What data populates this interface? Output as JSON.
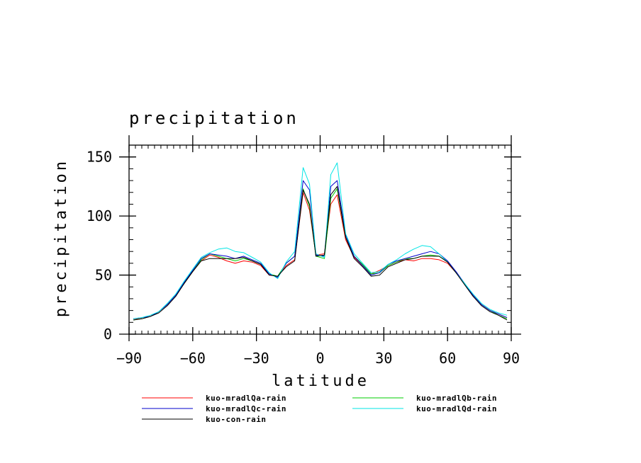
{
  "chart_data": {
    "type": "line",
    "title": "precipitation",
    "xlabel": "latitude",
    "ylabel": "precipitation",
    "xlim": [
      -90,
      90
    ],
    "ylim": [
      0,
      160
    ],
    "xticks": [
      -90,
      -60,
      -30,
      0,
      30,
      60,
      90
    ],
    "xtick_labels": [
      "−90",
      "−60",
      "−30",
      "0",
      "30",
      "60",
      "90"
    ],
    "yticks": [
      0,
      50,
      100,
      150
    ],
    "ytick_labels": [
      "0",
      "50",
      "100",
      "150"
    ],
    "x": [
      -88,
      -84,
      -80,
      -76,
      -72,
      -68,
      -64,
      -60,
      -56,
      -52,
      -48,
      -44,
      -40,
      -36,
      -32,
      -28,
      -24,
      -20,
      -16,
      -12,
      -8,
      -5,
      -2,
      2,
      5,
      8,
      12,
      16,
      20,
      24,
      28,
      32,
      36,
      40,
      44,
      48,
      52,
      56,
      60,
      64,
      68,
      72,
      76,
      80,
      84,
      88
    ],
    "series": [
      {
        "name": "kuo-mradlQa-rain",
        "color": "#ff0000",
        "values": [
          13,
          13,
          15,
          19,
          25,
          33,
          43,
          53,
          62,
          67,
          65,
          62,
          60,
          62,
          61,
          58,
          50,
          49,
          58,
          63,
          120,
          105,
          67,
          68,
          110,
          118,
          80,
          65,
          58,
          51,
          54,
          58,
          61,
          63,
          62,
          64,
          64,
          63,
          60,
          52,
          43,
          33,
          25,
          20,
          17,
          14
        ]
      },
      {
        "name": "kuo-mradlQb-rain",
        "color": "#00cc00",
        "values": [
          12,
          13,
          15,
          19,
          25,
          33,
          43,
          53,
          63,
          68,
          66,
          64,
          62,
          64,
          62,
          59,
          51,
          49,
          60,
          66,
          123,
          108,
          66,
          64,
          115,
          123,
          82,
          66,
          59,
          51,
          52,
          58,
          61,
          64,
          64,
          66,
          67,
          66,
          61,
          52,
          43,
          33,
          25,
          20,
          16,
          13
        ]
      },
      {
        "name": "kuo-mradlQc-rain",
        "color": "#0000cc",
        "values": [
          13,
          14,
          15,
          19,
          25,
          33,
          44,
          54,
          64,
          68,
          67,
          66,
          64,
          66,
          63,
          60,
          51,
          48,
          60,
          66,
          130,
          122,
          67,
          66,
          125,
          130,
          84,
          66,
          58,
          50,
          52,
          59,
          62,
          64,
          66,
          68,
          70,
          68,
          62,
          53,
          43,
          33,
          25,
          20,
          17,
          14
        ]
      },
      {
        "name": "kuo-mradlQd-rain",
        "color": "#00e5e5",
        "values": [
          13,
          14,
          16,
          19,
          26,
          34,
          45,
          55,
          65,
          69,
          72,
          73,
          70,
          69,
          65,
          61,
          52,
          47,
          61,
          70,
          141,
          127,
          68,
          65,
          135,
          145,
          85,
          68,
          60,
          52,
          53,
          59,
          63,
          68,
          72,
          75,
          74,
          68,
          61,
          52,
          43,
          34,
          26,
          21,
          18,
          16
        ]
      },
      {
        "name": "kuo-con-rain",
        "color": "#000000",
        "values": [
          12,
          13,
          15,
          18,
          24,
          32,
          43,
          53,
          62,
          64,
          64,
          64,
          64,
          65,
          62,
          59,
          50,
          49,
          57,
          62,
          122,
          110,
          66,
          67,
          118,
          125,
          82,
          64,
          57,
          49,
          50,
          57,
          60,
          63,
          64,
          66,
          66,
          66,
          61,
          52,
          42,
          32,
          24,
          19,
          16,
          12
        ]
      }
    ],
    "legend_position": "bottom",
    "grid": false
  }
}
